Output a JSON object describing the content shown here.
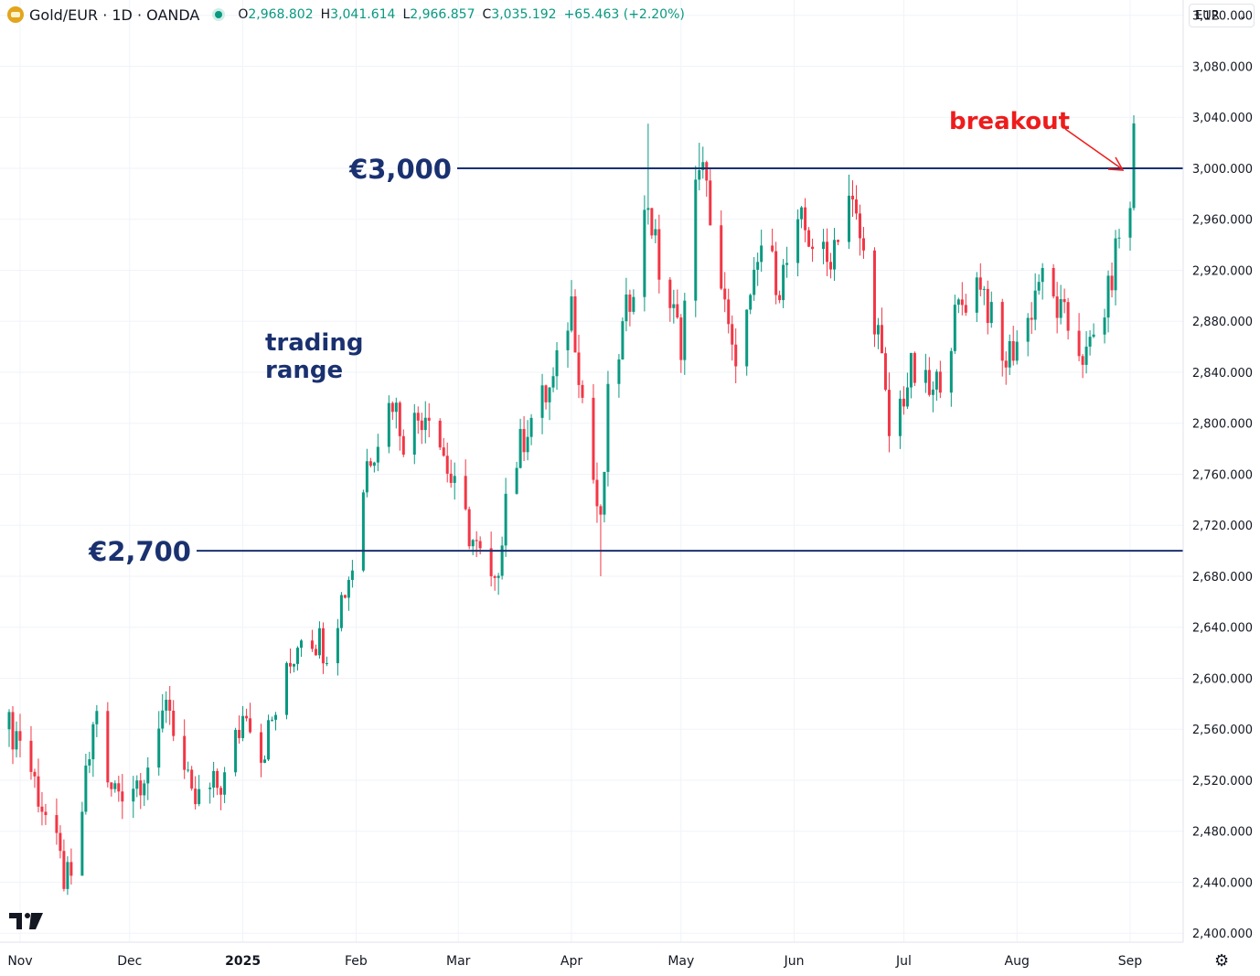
{
  "header": {
    "symbol": "Gold/EUR · 1D · OANDA",
    "ohlc": [
      {
        "k": "O",
        "v": "2,968.802"
      },
      {
        "k": "H",
        "v": "3,041.614"
      },
      {
        "k": "L",
        "v": "2,966.857"
      },
      {
        "k": "C",
        "v": "3,035.192"
      },
      {
        "k": "",
        "v": "+65.463 (+2.20%)"
      }
    ]
  },
  "currency": {
    "label": "EUR",
    "chevron": "chevron-down-icon"
  },
  "colors": {
    "up": "#089981",
    "down": "#f23645",
    "level_line": "#1a3170",
    "annotation_red": "#ee1c1c",
    "grid": "#f0f3fa"
  },
  "chart_data": {
    "type": "candlestick",
    "y_ticks": [
      "3,120.000",
      "3,080.000",
      "3,040.000",
      "3,000.000",
      "2,960.000",
      "2,920.000",
      "2,880.000",
      "2,840.000",
      "2,800.000",
      "2,760.000",
      "2,720.000",
      "2,680.000",
      "2,640.000",
      "2,600.000",
      "2,560.000",
      "2,520.000",
      "2,480.000",
      "2,440.000",
      "2,400.000"
    ],
    "ylim": [
      2393,
      3132
    ],
    "x_labels": [
      {
        "label": "Nov",
        "date": "2024-11-01"
      },
      {
        "label": "Dec",
        "date": "2024-12-01"
      },
      {
        "label": "2025",
        "date": "2025-01-01"
      },
      {
        "label": "Feb",
        "date": "2025-02-01"
      },
      {
        "label": "Mar",
        "date": "2025-03-01"
      },
      {
        "label": "Apr",
        "date": "2025-04-01"
      },
      {
        "label": "May",
        "date": "2025-05-01"
      },
      {
        "label": "Jun",
        "date": "2025-06-01"
      },
      {
        "label": "Jul",
        "date": "2025-07-01"
      },
      {
        "label": "Aug",
        "date": "2025-08-01"
      },
      {
        "label": "Sep",
        "date": "2025-09-01"
      }
    ],
    "levels": [
      {
        "label": "€3,000",
        "value": 3000
      },
      {
        "label": "€2,700",
        "value": 2700
      }
    ],
    "annotations": [
      {
        "label": "trading range",
        "lines": [
          "trading",
          "range"
        ]
      },
      {
        "label": "breakout"
      }
    ],
    "anchors": [
      [
        "2024-10-29",
        2560
      ],
      [
        "2024-11-01",
        2555
      ],
      [
        "2024-11-06",
        2510
      ],
      [
        "2024-11-13",
        2445
      ],
      [
        "2024-11-15",
        2435
      ],
      [
        "2024-11-22",
        2580
      ],
      [
        "2024-11-25",
        2510
      ],
      [
        "2024-12-03",
        2520
      ],
      [
        "2024-12-09",
        2545
      ],
      [
        "2024-12-11",
        2590
      ],
      [
        "2024-12-18",
        2500
      ],
      [
        "2024-12-27",
        2520
      ],
      [
        "2025-01-02",
        2580
      ],
      [
        "2025-01-06",
        2540
      ],
      [
        "2025-01-13",
        2600
      ],
      [
        "2025-01-17",
        2640
      ],
      [
        "2025-01-24",
        2625
      ],
      [
        "2025-01-31",
        2690
      ],
      [
        "2025-02-04",
        2770
      ],
      [
        "2025-02-11",
        2820
      ],
      [
        "2025-02-14",
        2790
      ],
      [
        "2025-02-21",
        2815
      ],
      [
        "2025-02-28",
        2745
      ],
      [
        "2025-03-06",
        2700
      ],
      [
        "2025-03-11",
        2665
      ],
      [
        "2025-03-14",
        2745
      ],
      [
        "2025-03-20",
        2800
      ],
      [
        "2025-03-27",
        2830
      ],
      [
        "2025-04-01",
        2895
      ],
      [
        "2025-04-04",
        2820
      ],
      [
        "2025-04-09",
        2715
      ],
      [
        "2025-04-11",
        2815
      ],
      [
        "2025-04-17",
        2900
      ],
      [
        "2025-04-22",
        2975
      ],
      [
        "2025-04-25",
        2920
      ],
      [
        "2025-05-01",
        2865
      ],
      [
        "2025-05-06",
        3010
      ],
      [
        "2025-05-09",
        2965
      ],
      [
        "2025-05-15",
        2850
      ],
      [
        "2025-05-20",
        2890
      ],
      [
        "2025-05-23",
        2940
      ],
      [
        "2025-05-28",
        2910
      ],
      [
        "2025-06-03",
        2955
      ],
      [
        "2025-06-10",
        2925
      ],
      [
        "2025-06-16",
        2980
      ],
      [
        "2025-06-19",
        2945
      ],
      [
        "2025-06-24",
        2870
      ],
      [
        "2025-06-27",
        2790
      ],
      [
        "2025-07-03",
        2840
      ],
      [
        "2025-07-09",
        2820
      ],
      [
        "2025-07-16",
        2890
      ],
      [
        "2025-07-22",
        2915
      ],
      [
        "2025-07-28",
        2845
      ],
      [
        "2025-08-04",
        2880
      ],
      [
        "2025-08-07",
        2915
      ],
      [
        "2025-08-14",
        2880
      ],
      [
        "2025-08-20",
        2850
      ],
      [
        "2025-08-26",
        2900
      ],
      [
        "2025-08-29",
        2950
      ],
      [
        "2025-09-01",
        2968.802
      ]
    ],
    "last_candle": {
      "date": "2025-09-02",
      "open": 2968.802,
      "high": 3041.614,
      "low": 2966.857,
      "close": 3035.192
    },
    "high_marks": [
      [
        "2025-04-22",
        3035
      ],
      [
        "2025-05-06",
        3020
      ],
      [
        "2025-06-16",
        2995
      ],
      [
        "2025-04-09",
        2680
      ]
    ]
  },
  "icons": {
    "tv_logo": "tradingview-logo",
    "settings": "gear-icon"
  }
}
